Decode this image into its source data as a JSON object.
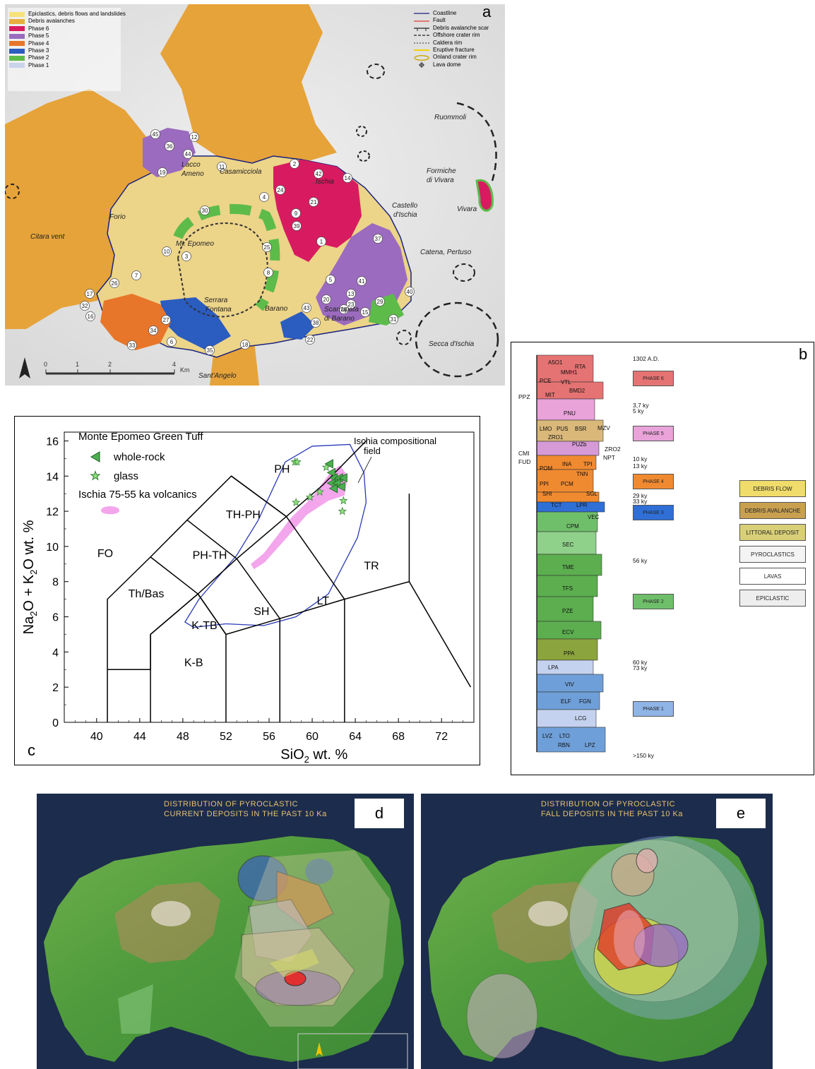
{
  "panel_a": {
    "letter": "a",
    "legend_units": [
      {
        "label": "Epiclastics, debris flows and landslides",
        "color": "#f6e27a"
      },
      {
        "label": "Debris avalanches",
        "color": "#e8ae3c"
      },
      {
        "label": "Phase 6",
        "color": "#d81b60"
      },
      {
        "label": "Phase 5",
        "color": "#9b6bbf"
      },
      {
        "label": "Phase 4",
        "color": "#e8762a"
      },
      {
        "label": "Phase 3",
        "color": "#2b5cbf"
      },
      {
        "label": "Phase 2",
        "color": "#5dbb4a"
      },
      {
        "label": "Phase 1",
        "color": "#c9d3ea"
      }
    ],
    "legend_symbols": [
      {
        "label": "Coastline",
        "icon": "coastline-line-icon",
        "color": "#1a237e"
      },
      {
        "label": "Fault",
        "icon": "fault-line-icon",
        "color": "#e53935"
      },
      {
        "label": "Debris avalanche scar",
        "icon": "scar-line-icon",
        "color": "#222222"
      },
      {
        "label": "Offshore crater rim",
        "icon": "dashed-line-icon",
        "color": "#222222"
      },
      {
        "label": "Caldera rim",
        "icon": "fine-dashed-line-icon",
        "color": "#555555"
      },
      {
        "label": "Eruptive fracture",
        "icon": "fracture-line-icon",
        "color": "#f2d200"
      },
      {
        "label": "Onland crater rim",
        "icon": "ellipse-icon",
        "color": "#c9a800"
      },
      {
        "label": "Lava dome",
        "icon": "dome-icon",
        "color": "#333333"
      }
    ],
    "places": [
      {
        "name": "Ruommoli"
      },
      {
        "name": "Formiche"
      },
      {
        "name": "di Vivara"
      },
      {
        "name": "Vivara"
      },
      {
        "name": "Castello"
      },
      {
        "name": "d'Ischia"
      },
      {
        "name": "Catena, Pertuso"
      },
      {
        "name": "Secca d'Ischia"
      },
      {
        "name": "Citara vent"
      },
      {
        "name": "Forio"
      },
      {
        "name": "Lacco"
      },
      {
        "name": "Ameno"
      },
      {
        "name": "Casamicciola"
      },
      {
        "name": "Ischia"
      },
      {
        "name": "Mt. Epomeo"
      },
      {
        "name": "Serrara"
      },
      {
        "name": "Fontana"
      },
      {
        "name": "Barano"
      },
      {
        "name": "Scarrupata"
      },
      {
        "name": "di Barano"
      },
      {
        "name": "Sant'Angelo"
      }
    ],
    "vent_numbers": [
      "45",
      "36",
      "12",
      "44",
      "19",
      "11",
      "2",
      "42",
      "14",
      "24",
      "21",
      "4",
      "30",
      "9",
      "1",
      "39",
      "25",
      "37",
      "3",
      "10",
      "8",
      "7",
      "5",
      "26",
      "41",
      "20",
      "13",
      "29",
      "40",
      "17",
      "32",
      "16",
      "43",
      "23",
      "28",
      "15",
      "31",
      "27",
      "34",
      "22",
      "38",
      "33",
      "6",
      "35",
      "18"
    ],
    "scale_ticks": [
      "0",
      "1",
      "2",
      "4"
    ],
    "scale_unit": "Km"
  },
  "panel_b": {
    "letter": "b",
    "units": [
      {
        "label": "A5O1",
        "color": "#e57373"
      },
      {
        "label": "RTA",
        "color": "#e57373"
      },
      {
        "label": "MMH1",
        "color": "#e57373"
      },
      {
        "label": "PCE",
        "color": "#e57373"
      },
      {
        "label": "VTL",
        "color": "#e57373"
      },
      {
        "label": "MIT",
        "color": "#e57373"
      },
      {
        "label": "BMD2",
        "color": "#e57373"
      },
      {
        "label": "PNU",
        "color": "#e9a3d9"
      },
      {
        "label": "LMO",
        "color": "#d9b87a"
      },
      {
        "label": "PUS",
        "color": "#d9b87a"
      },
      {
        "label": "BSR",
        "color": "#d9b87a"
      },
      {
        "label": "ZRO1",
        "color": "#d69ad6"
      },
      {
        "label": "PUZb",
        "color": "#d69ad6"
      },
      {
        "label": "INA",
        "color": "#f08a30"
      },
      {
        "label": "TPI",
        "color": "#f08a30"
      },
      {
        "label": "POM",
        "color": "#f08a30"
      },
      {
        "label": "TNN",
        "color": "#f08a30"
      },
      {
        "label": "PPI",
        "color": "#f08a30"
      },
      {
        "label": "PCM",
        "color": "#f08a30"
      },
      {
        "label": "SHI",
        "color": "#f08a30"
      },
      {
        "label": "SGL",
        "color": "#f08a30"
      },
      {
        "label": "TCT",
        "color": "#2f6fd6"
      },
      {
        "label": "LPR",
        "color": "#2f6fd6"
      },
      {
        "label": "VEC",
        "color": "#6fbf6a"
      },
      {
        "label": "CPM",
        "color": "#6fbf6a"
      },
      {
        "label": "SEC",
        "color": "#8fd08a"
      },
      {
        "label": "TME",
        "color": "#5cae4f"
      },
      {
        "label": "TFS",
        "color": "#5cae4f"
      },
      {
        "label": "PZE",
        "color": "#5cae4f"
      },
      {
        "label": "ECV",
        "color": "#5cae4f"
      },
      {
        "label": "PPA",
        "color": "#8ca43d"
      },
      {
        "label": "LPA",
        "color": "#c5d2ef"
      },
      {
        "label": "VIV",
        "color": "#6f9fd8"
      },
      {
        "label": "ELF",
        "color": "#6f9fd8"
      },
      {
        "label": "FGN",
        "color": "#6f9fd8"
      },
      {
        "label": "LCG",
        "color": "#c5d2ef"
      },
      {
        "label": "LVZ",
        "color": "#6f9fd8"
      },
      {
        "label": "LTO",
        "color": "#6f9fd8"
      },
      {
        "label": "RBN",
        "color": "#6f9fd8"
      },
      {
        "label": "LPZ",
        "color": "#c5d2ef"
      }
    ],
    "side_labels": [
      "PPZ",
      "MZV",
      "ZRO2",
      "NPT",
      "CMI",
      "FUD"
    ],
    "ages": [
      "1302 A.D.",
      "3,7 ky",
      "5 ky",
      "10 ky",
      "13 ky",
      "29 ky",
      "33 ky",
      "56 ky",
      "60 ky",
      "73 ky",
      ">150 ky"
    ],
    "phases": [
      {
        "label": "PHASE 6",
        "color": "#e57373"
      },
      {
        "label": "PHASE 5",
        "color": "#e9a3d9"
      },
      {
        "label": "PHASE 4",
        "color": "#f08a30"
      },
      {
        "label": "PHASE 3",
        "color": "#2f6fd6"
      },
      {
        "label": "PHASE 2",
        "color": "#6fbf6a"
      },
      {
        "label": "PHASE 1",
        "color": "#8fb4e6"
      }
    ],
    "lithology": [
      {
        "label": "DEBRIS FLOW",
        "color": "#f0dc6a"
      },
      {
        "label": "DEBRIS AVALANCHE",
        "color": "#c8a050"
      },
      {
        "label": "LITTORAL DEPOSIT",
        "color": "#d8cf78"
      },
      {
        "label": "PYROCLASTICS",
        "color": "#f4f4f4"
      },
      {
        "label": "LAVAS",
        "color": "#ffffff"
      },
      {
        "label": "EPICLASTIC",
        "color": "#eeeeee"
      }
    ]
  },
  "panel_c": {
    "letter": "c",
    "legend_title": "Monte Epomeo Green Tuff",
    "legend_whole_rock": "whole-rock",
    "legend_glass": "glass",
    "legend_volcanics": "Ischia 75-55 ka volcanics",
    "field_label_1": "Ischia compositional",
    "field_label_2": "field",
    "chart_data": {
      "type": "scatter",
      "xlabel_main": "SiO",
      "xlabel_sub": "2",
      "xlabel_tail": " wt. %",
      "ylabel_a": "Na",
      "ylabel_a_sub": "2",
      "ylabel_b": "O + K",
      "ylabel_b_sub": "2",
      "ylabel_c": "O wt. %",
      "xlim": [
        37,
        75
      ],
      "ylim": [
        0,
        16.5
      ],
      "x_ticks": [
        "40",
        "44",
        "48",
        "52",
        "56",
        "60",
        "64",
        "68",
        "72"
      ],
      "y_ticks": [
        "0",
        "2",
        "4",
        "6",
        "8",
        "10",
        "12",
        "14",
        "16"
      ],
      "fields": [
        {
          "label": "FO",
          "x": 40.8,
          "y": 9.4
        },
        {
          "label": "Th/Bas",
          "x": 44.6,
          "y": 7.1
        },
        {
          "label": "PH-TH",
          "x": 50.5,
          "y": 9.3
        },
        {
          "label": "TH-PH",
          "x": 53.6,
          "y": 11.6
        },
        {
          "label": "PH",
          "x": 57.2,
          "y": 14.2
        },
        {
          "label": "K-TB",
          "x": 50.0,
          "y": 5.3
        },
        {
          "label": "SH",
          "x": 55.3,
          "y": 6.1
        },
        {
          "label": "LT",
          "x": 61.0,
          "y": 6.7
        },
        {
          "label": "K-B",
          "x": 49.0,
          "y": 3.2
        },
        {
          "label": "TR",
          "x": 65.5,
          "y": 8.7
        }
      ],
      "boundaries": [
        [
          [
            41,
            0
          ],
          [
            41,
            7
          ],
          [
            45,
            9.4
          ],
          [
            48.4,
            11.5
          ],
          [
            52.5,
            14
          ],
          [
            57.6,
            11.7
          ],
          [
            53,
            9.3
          ],
          [
            49.4,
            7.3
          ],
          [
            45,
            5
          ]
        ],
        [
          [
            41,
            3
          ],
          [
            45,
            3
          ],
          [
            45,
            5
          ],
          [
            49.4,
            7.3
          ],
          [
            52,
            5
          ],
          [
            57,
            5.9
          ],
          [
            63,
            7
          ],
          [
            69,
            8
          ],
          [
            74.7,
            2
          ]
        ],
        [
          [
            45,
            0
          ],
          [
            45,
            5
          ]
        ],
        [
          [
            52,
            0
          ],
          [
            52,
            5
          ]
        ],
        [
          [
            57,
            0
          ],
          [
            57,
            5.9
          ]
        ],
        [
          [
            63,
            0
          ],
          [
            63,
            7
          ]
        ],
        [
          [
            69,
            8
          ],
          [
            69,
            13
          ]
        ],
        [
          [
            45,
            9.4
          ],
          [
            49.4,
            7.3
          ]
        ],
        [
          [
            48.4,
            11.5
          ],
          [
            53,
            9.3
          ]
        ],
        [
          [
            53,
            9.3
          ],
          [
            57,
            5.9
          ]
        ],
        [
          [
            57.6,
            11.7
          ],
          [
            63,
            7
          ]
        ],
        [
          [
            52.5,
            14
          ],
          [
            57.6,
            11.7
          ],
          [
            61,
            13.5
          ],
          [
            65,
            16
          ]
        ],
        [
          [
            49.4,
            7.3
          ],
          [
            52,
            5
          ]
        ]
      ],
      "compositional_field": [
        [
          48.2,
          5.7
        ],
        [
          49.5,
          7.0
        ],
        [
          53,
          9.5
        ],
        [
          55,
          11.5
        ],
        [
          57.5,
          14.8
        ],
        [
          60,
          15.7
        ],
        [
          63.5,
          15.8
        ],
        [
          64.8,
          14.2
        ],
        [
          65,
          12.5
        ],
        [
          64.2,
          10.5
        ],
        [
          61.5,
          7.3
        ],
        [
          58.5,
          6.0
        ],
        [
          55.5,
          5.5
        ],
        [
          52,
          5.6
        ],
        [
          49,
          5.4
        ],
        [
          48.2,
          5.7
        ]
      ],
      "volcanics_field": [
        [
          54.3,
          9.0
        ],
        [
          55.5,
          9.6
        ],
        [
          58,
          11.6
        ],
        [
          60,
          12.8
        ],
        [
          61.8,
          14.3
        ],
        [
          62.6,
          14.6
        ],
        [
          63.3,
          14.0
        ],
        [
          63,
          12.9
        ],
        [
          61.5,
          12.6
        ],
        [
          59.5,
          11.8
        ],
        [
          57.5,
          10.4
        ],
        [
          55.6,
          9.1
        ],
        [
          54.6,
          8.7
        ],
        [
          54.3,
          9.0
        ]
      ],
      "series": [
        {
          "name": "whole-rock",
          "marker": "triangle",
          "color": "#4caf50",
          "points": [
            [
              61.6,
              14.7
            ],
            [
              61.8,
              14.2
            ],
            [
              62.0,
              13.9
            ],
            [
              62.5,
              13.9
            ],
            [
              62.9,
              13.9
            ],
            [
              61.8,
              13.6
            ],
            [
              62.3,
              13.6
            ],
            [
              62.0,
              13.3
            ],
            [
              62.7,
              13.4
            ]
          ]
        },
        {
          "name": "glass",
          "marker": "star",
          "color": "#8fe07a",
          "points": [
            [
              58.4,
              14.8
            ],
            [
              58.6,
              14.8
            ],
            [
              61.3,
              14.5
            ],
            [
              58.5,
              12.5
            ],
            [
              59.8,
              12.8
            ],
            [
              60.7,
              13.1
            ],
            [
              62.9,
              12.6
            ],
            [
              62.8,
              12.0
            ]
          ]
        }
      ]
    }
  },
  "panel_d": {
    "letter": "d",
    "title_1": "DISTRIBUTION OF PYROCLASTIC",
    "title_2": "CURRENT DEPOSITS IN THE PAST 10 Ka"
  },
  "panel_e": {
    "letter": "e",
    "title_1": "DISTRIBUTION OF PYROCLASTIC",
    "title_2": "FALL DEPOSITS IN THE PAST 10 Ka"
  }
}
